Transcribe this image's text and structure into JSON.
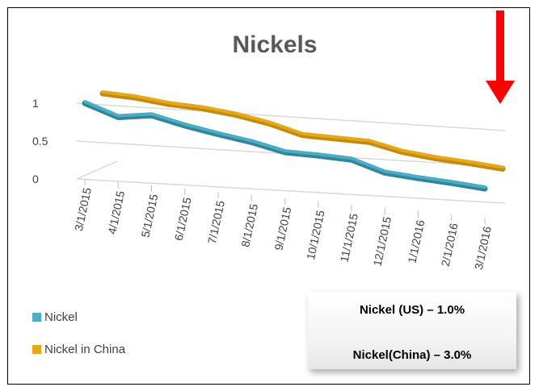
{
  "chart_data": {
    "type": "line",
    "title": "Nickels",
    "categories": [
      "3/1/2015",
      "4/1/2015",
      "5/1/2015",
      "6/1/2015",
      "7/1/2015",
      "8/1/2015",
      "9/1/2015",
      "10/1/2015",
      "11/1/2015",
      "12/1/2015",
      "1/1/2016",
      "2/1/2016",
      "3/1/2016"
    ],
    "series": [
      {
        "name": "Nickel",
        "color": "#4bacc6",
        "values": [
          1.0,
          0.86,
          0.93,
          0.84,
          0.77,
          0.71,
          0.62,
          0.62,
          0.61,
          0.48,
          0.45,
          0.43,
          0.4
        ]
      },
      {
        "name": "Nickel in China",
        "color": "#e6a817",
        "values": [
          1.0,
          0.99,
          0.95,
          0.94,
          0.9,
          0.83,
          0.72,
          0.72,
          0.72,
          0.63,
          0.59,
          0.57,
          0.54
        ]
      }
    ],
    "yticks": [
      "0",
      "0.5",
      "1"
    ],
    "ylim": [
      0,
      1
    ],
    "grid": true,
    "legend_position": "bottom-left",
    "arrow_color": "#ff0000",
    "arrow_direction": "down"
  },
  "callout": {
    "line1": "Nickel (US) – 1.0%",
    "line2": "Nickel(China) – 3.0%"
  }
}
